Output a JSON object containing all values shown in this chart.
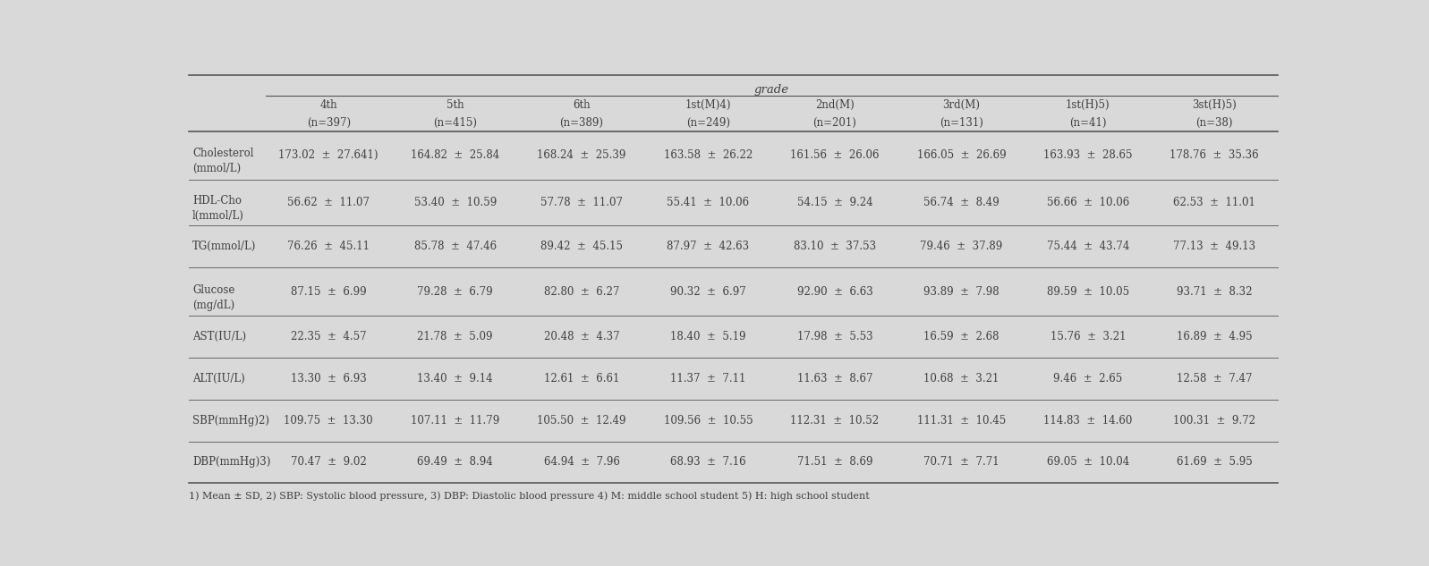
{
  "title": "grade",
  "bg_color": "#d9d9d9",
  "columns": [
    {
      "header1": "4th",
      "header2": "(n=397)"
    },
    {
      "header1": "5th",
      "header2": "(n=415)"
    },
    {
      "header1": "6th",
      "header2": "(n=389)"
    },
    {
      "header1": "1st(M)4)",
      "header2": "(n=249)"
    },
    {
      "header1": "2nd(M)",
      "header2": "(n=201)"
    },
    {
      "header1": "3rd(M)",
      "header2": "(n=131)"
    },
    {
      "header1": "1st(H)5)",
      "header2": "(n=41)"
    },
    {
      "header1": "3st(H)5)",
      "header2": "(n=38)"
    }
  ],
  "rows": [
    {
      "label1": "Cholesterol",
      "label2": "(mmol/L)",
      "values": [
        [
          "173.02",
          "27.641)"
        ],
        [
          "164.82",
          "25.84"
        ],
        [
          "168.24",
          "25.39"
        ],
        [
          "163.58",
          "26.22"
        ],
        [
          "161.56",
          "26.06"
        ],
        [
          "166.05",
          "26.69"
        ],
        [
          "163.93",
          "28.65"
        ],
        [
          "178.76",
          "35.36"
        ]
      ]
    },
    {
      "label1": "HDL-Cho",
      "label2": "l(mmol/L)",
      "values": [
        [
          "56.62",
          "11.07"
        ],
        [
          "53.40",
          "10.59"
        ],
        [
          "57.78",
          "11.07"
        ],
        [
          "55.41",
          "10.06"
        ],
        [
          "54.15",
          "9.24"
        ],
        [
          "56.74",
          "8.49"
        ],
        [
          "56.66",
          "10.06"
        ],
        [
          "62.53",
          "11.01"
        ]
      ]
    },
    {
      "label1": "TG(mmol/L)",
      "label2": "",
      "values": [
        [
          "76.26",
          "45.11"
        ],
        [
          "85.78",
          "47.46"
        ],
        [
          "89.42",
          "45.15"
        ],
        [
          "87.97",
          "42.63"
        ],
        [
          "83.10",
          "37.53"
        ],
        [
          "79.46",
          "37.89"
        ],
        [
          "75.44",
          "43.74"
        ],
        [
          "77.13",
          "49.13"
        ]
      ]
    },
    {
      "label1": "Glucose",
      "label2": "(mg/dL)",
      "values": [
        [
          "87.15",
          "6.99"
        ],
        [
          "79.28",
          "6.79"
        ],
        [
          "82.80",
          "6.27"
        ],
        [
          "90.32",
          "6.97"
        ],
        [
          "92.90",
          "6.63"
        ],
        [
          "93.89",
          "7.98"
        ],
        [
          "89.59",
          "10.05"
        ],
        [
          "93.71",
          "8.32"
        ]
      ]
    },
    {
      "label1": "AST(IU/L)",
      "label2": "",
      "values": [
        [
          "22.35",
          "4.57"
        ],
        [
          "21.78",
          "5.09"
        ],
        [
          "20.48",
          "4.37"
        ],
        [
          "18.40",
          "5.19"
        ],
        [
          "17.98",
          "5.53"
        ],
        [
          "16.59",
          "2.68"
        ],
        [
          "15.76",
          "3.21"
        ],
        [
          "16.89",
          "4.95"
        ]
      ]
    },
    {
      "label1": "ALT(IU/L)",
      "label2": "",
      "values": [
        [
          "13.30",
          "6.93"
        ],
        [
          "13.40",
          "9.14"
        ],
        [
          "12.61",
          "6.61"
        ],
        [
          "11.37",
          "7.11"
        ],
        [
          "11.63",
          "8.67"
        ],
        [
          "10.68",
          "3.21"
        ],
        [
          "9.46",
          "2.65"
        ],
        [
          "12.58",
          "7.47"
        ]
      ]
    },
    {
      "label1": "SBP(mmHg)2)",
      "label2": "",
      "values": [
        [
          "109.75",
          "13.30"
        ],
        [
          "107.11",
          "11.79"
        ],
        [
          "105.50",
          "12.49"
        ],
        [
          "109.56",
          "10.55"
        ],
        [
          "112.31",
          "10.52"
        ],
        [
          "111.31",
          "10.45"
        ],
        [
          "114.83",
          "14.60"
        ],
        [
          "100.31",
          "9.72"
        ]
      ]
    },
    {
      "label1": "DBP(mmHg)3)",
      "label2": "",
      "values": [
        [
          "70.47",
          "9.02"
        ],
        [
          "69.49",
          "8.94"
        ],
        [
          "64.94",
          "7.96"
        ],
        [
          "68.93",
          "7.16"
        ],
        [
          "71.51",
          "8.69"
        ],
        [
          "70.71",
          "7.71"
        ],
        [
          "69.05",
          "10.04"
        ],
        [
          "61.69",
          "5.95"
        ]
      ]
    }
  ],
  "footnote": "1) Mean ± SD, 2) SBP: Systolic blood pressure, 3) DBP: Diastolic blood pressure 4) M: middle school student 5) H: high school student"
}
